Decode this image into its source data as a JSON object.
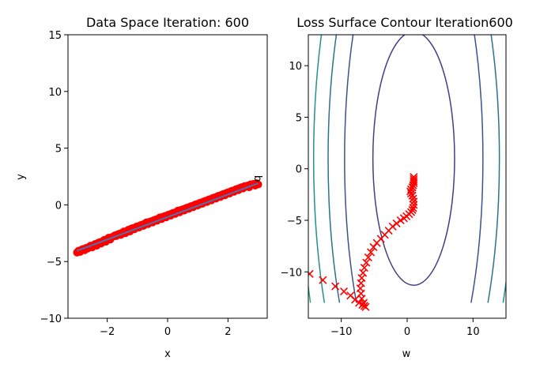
{
  "chart_data": [
    {
      "type": "scatter",
      "title": "Data Space Iteration: 600",
      "xlabel": "x",
      "ylabel": "y",
      "side_label": "b",
      "xlim": [
        -3.3,
        3.3
      ],
      "ylim": [
        -10,
        15
      ],
      "xticks": [
        -2,
        0,
        2
      ],
      "yticks": [
        -10,
        -5,
        0,
        5,
        10,
        15
      ],
      "scatter_color": "#ff0000",
      "line_color": "#4c72b0",
      "fit_line": {
        "x": [
          -3,
          3
        ],
        "y": [
          -4.05,
          1.9
        ]
      },
      "points": [
        [
          -3.0,
          -4.2
        ],
        [
          -2.95,
          -4.05
        ],
        [
          -2.9,
          -4.15
        ],
        [
          -2.85,
          -3.95
        ],
        [
          -2.8,
          -3.9
        ],
        [
          -2.75,
          -4.0
        ],
        [
          -2.7,
          -3.8
        ],
        [
          -2.65,
          -3.85
        ],
        [
          -2.6,
          -3.7
        ],
        [
          -2.55,
          -3.6
        ],
        [
          -2.5,
          -3.75
        ],
        [
          -2.45,
          -3.55
        ],
        [
          -2.4,
          -3.45
        ],
        [
          -2.35,
          -3.6
        ],
        [
          -2.3,
          -3.35
        ],
        [
          -2.25,
          -3.3
        ],
        [
          -2.2,
          -3.4
        ],
        [
          -2.15,
          -3.2
        ],
        [
          -2.1,
          -3.1
        ],
        [
          -2.05,
          -3.25
        ],
        [
          -2.0,
          -3.0
        ],
        [
          -1.95,
          -2.9
        ],
        [
          -1.9,
          -3.05
        ],
        [
          -1.85,
          -2.85
        ],
        [
          -1.8,
          -2.8
        ],
        [
          -1.75,
          -2.7
        ],
        [
          -1.7,
          -2.75
        ],
        [
          -1.65,
          -2.6
        ],
        [
          -1.6,
          -2.55
        ],
        [
          -1.55,
          -2.65
        ],
        [
          -1.5,
          -2.45
        ],
        [
          -1.45,
          -2.35
        ],
        [
          -1.4,
          -2.5
        ],
        [
          -1.35,
          -2.3
        ],
        [
          -1.3,
          -2.2
        ],
        [
          -1.25,
          -2.35
        ],
        [
          -1.2,
          -2.1
        ],
        [
          -1.15,
          -2.05
        ],
        [
          -1.1,
          -2.15
        ],
        [
          -1.05,
          -1.95
        ],
        [
          -1.0,
          -1.9
        ],
        [
          -0.95,
          -2.0
        ],
        [
          -0.9,
          -1.8
        ],
        [
          -0.85,
          -1.75
        ],
        [
          -0.8,
          -1.85
        ],
        [
          -0.75,
          -1.65
        ],
        [
          -0.7,
          -1.55
        ],
        [
          -0.65,
          -1.7
        ],
        [
          -0.6,
          -1.5
        ],
        [
          -0.55,
          -1.45
        ],
        [
          -0.5,
          -1.55
        ],
        [
          -0.45,
          -1.35
        ],
        [
          -0.4,
          -1.3
        ],
        [
          -0.35,
          -1.4
        ],
        [
          -0.3,
          -1.2
        ],
        [
          -0.25,
          -1.1
        ],
        [
          -0.2,
          -1.25
        ],
        [
          -0.15,
          -1.05
        ],
        [
          -0.1,
          -1.0
        ],
        [
          -0.05,
          -1.1
        ],
        [
          0.0,
          -0.9
        ],
        [
          0.05,
          -0.85
        ],
        [
          0.1,
          -0.95
        ],
        [
          0.15,
          -0.75
        ],
        [
          0.2,
          -0.7
        ],
        [
          0.25,
          -0.8
        ],
        [
          0.3,
          -0.6
        ],
        [
          0.35,
          -0.5
        ],
        [
          0.4,
          -0.65
        ],
        [
          0.45,
          -0.45
        ],
        [
          0.5,
          -0.4
        ],
        [
          0.55,
          -0.5
        ],
        [
          0.6,
          -0.3
        ],
        [
          0.65,
          -0.25
        ],
        [
          0.7,
          -0.35
        ],
        [
          0.75,
          -0.15
        ],
        [
          0.8,
          -0.1
        ],
        [
          0.85,
          -0.2
        ],
        [
          0.9,
          0.0
        ],
        [
          0.95,
          0.05
        ],
        [
          1.0,
          -0.05
        ],
        [
          1.05,
          0.15
        ],
        [
          1.1,
          0.2
        ],
        [
          1.15,
          0.1
        ],
        [
          1.2,
          0.3
        ],
        [
          1.25,
          0.35
        ],
        [
          1.3,
          0.25
        ],
        [
          1.35,
          0.45
        ],
        [
          1.4,
          0.5
        ],
        [
          1.45,
          0.4
        ],
        [
          1.5,
          0.6
        ],
        [
          1.55,
          0.65
        ],
        [
          1.6,
          0.55
        ],
        [
          1.65,
          0.75
        ],
        [
          1.7,
          0.8
        ],
        [
          1.75,
          0.7
        ],
        [
          1.8,
          0.9
        ],
        [
          1.85,
          0.95
        ],
        [
          1.9,
          0.85
        ],
        [
          1.95,
          1.05
        ],
        [
          2.0,
          1.1
        ],
        [
          2.05,
          1.0
        ],
        [
          2.1,
          1.2
        ],
        [
          2.15,
          1.25
        ],
        [
          2.2,
          1.15
        ],
        [
          2.25,
          1.35
        ],
        [
          2.3,
          1.4
        ],
        [
          2.35,
          1.3
        ],
        [
          2.4,
          1.5
        ],
        [
          2.45,
          1.55
        ],
        [
          2.5,
          1.45
        ],
        [
          2.55,
          1.65
        ],
        [
          2.6,
          1.6
        ],
        [
          2.65,
          1.7
        ],
        [
          2.7,
          1.55
        ],
        [
          2.75,
          1.8
        ],
        [
          2.8,
          1.75
        ],
        [
          2.85,
          1.85
        ],
        [
          2.9,
          1.7
        ],
        [
          2.95,
          1.9
        ],
        [
          3.0,
          1.8
        ]
      ]
    },
    {
      "type": "contour",
      "title": "Loss Surface Contour Iteration600",
      "xlabel": "w",
      "ylabel": "",
      "xlim": [
        -15,
        15
      ],
      "ylim": [
        -14.5,
        13
      ],
      "xticks": [
        -10,
        0,
        10
      ],
      "yticks": [
        -10,
        -5,
        0,
        5,
        10
      ],
      "contours": [
        {
          "cx": 1,
          "cy": 1,
          "rx": 6.2,
          "ry": 12.3,
          "color": "#433e85"
        },
        {
          "cx": 1,
          "cy": 1,
          "rx": 10.5,
          "ry": 25,
          "color": "#3b528b"
        },
        {
          "cx": 1,
          "cy": 1,
          "rx": 13,
          "ry": 28,
          "color": "#2c728e"
        },
        {
          "cx": 1,
          "cy": 1,
          "rx": 15.2,
          "ry": 31,
          "color": "#21918c"
        },
        {
          "cx": 1,
          "cy": 1,
          "rx": 17.2,
          "ry": 34,
          "color": "#28ae80"
        },
        {
          "cx": 1,
          "cy": 1,
          "rx": 19,
          "ry": 37,
          "color": "#5ec962"
        },
        {
          "cx": 1,
          "cy": 1,
          "rx": 20.7,
          "ry": 40,
          "color": "#addc30"
        }
      ],
      "trajectory_color": "#ff0000",
      "trajectory": [
        [
          -14.8,
          -10.2
        ],
        [
          -12.8,
          -10.8
        ],
        [
          -10.9,
          -11.4
        ],
        [
          -9.6,
          -11.9
        ],
        [
          -8.6,
          -12.3
        ],
        [
          -7.9,
          -12.7
        ],
        [
          -7.3,
          -13.0
        ],
        [
          -6.8,
          -13.2
        ],
        [
          -6.5,
          -13.3
        ],
        [
          -6.3,
          -13.4
        ],
        [
          -6.6,
          -13.0
        ],
        [
          -6.9,
          -12.6
        ],
        [
          -7.0,
          -12.1
        ],
        [
          -7.1,
          -11.6
        ],
        [
          -7.0,
          -11.1
        ],
        [
          -6.9,
          -10.6
        ],
        [
          -6.7,
          -10.1
        ],
        [
          -6.5,
          -9.6
        ],
        [
          -6.2,
          -9.1
        ],
        [
          -5.9,
          -8.6
        ],
        [
          -5.5,
          -8.1
        ],
        [
          -5.1,
          -7.6
        ],
        [
          -4.6,
          -7.2
        ],
        [
          -4.0,
          -6.8
        ],
        [
          -3.4,
          -6.4
        ],
        [
          -2.8,
          -6.0
        ],
        [
          -2.2,
          -5.6
        ],
        [
          -1.6,
          -5.3
        ],
        [
          -1.0,
          -5.0
        ],
        [
          -0.5,
          -4.8
        ],
        [
          -0.1,
          -4.6
        ],
        [
          0.3,
          -4.4
        ],
        [
          0.6,
          -4.2
        ],
        [
          0.8,
          -4.0
        ],
        [
          0.9,
          -3.8
        ],
        [
          1.0,
          -3.5
        ],
        [
          1.0,
          -3.2
        ],
        [
          0.9,
          -2.9
        ],
        [
          0.8,
          -2.6
        ],
        [
          0.6,
          -2.4
        ],
        [
          0.5,
          -2.2
        ],
        [
          0.6,
          -2.0
        ],
        [
          0.8,
          -1.8
        ],
        [
          0.9,
          -1.6
        ],
        [
          1.0,
          -1.4
        ],
        [
          1.0,
          -1.2
        ],
        [
          1.0,
          -1.0
        ],
        [
          1.0,
          -0.8
        ]
      ]
    }
  ]
}
